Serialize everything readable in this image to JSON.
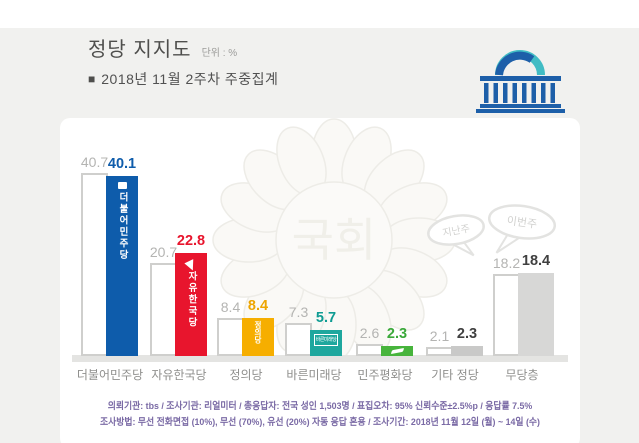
{
  "header": {
    "title": "정당 지지도",
    "unit_label": "단위 : %",
    "subtitle_bullet": "■",
    "subtitle": "2018년 11월 2주차 주중집계"
  },
  "chart_data": {
    "type": "bar",
    "title": "정당 지지도",
    "unit": "%",
    "categories": [
      "더불어민주당",
      "자유한국당",
      "정의당",
      "바른미래당",
      "민주평화당",
      "기타 정당",
      "무당층"
    ],
    "series": [
      {
        "name": "지난주",
        "values": [
          40.7,
          20.7,
          8.4,
          7.3,
          2.6,
          2.1,
          18.2
        ]
      },
      {
        "name": "이번주",
        "values": [
          40.1,
          22.8,
          8.4,
          5.7,
          2.3,
          2.3,
          18.4
        ]
      }
    ],
    "bar_logos": [
      "더불어민주당",
      "자유한국당",
      "정의당",
      "바른미래당",
      "",
      "",
      ""
    ],
    "this_week_bar_colors": [
      "#0e5cab",
      "#e8152d",
      "#f6ae00",
      "#1ea79e",
      "#47b43c",
      "#c9c9c8",
      "#d7d7d6"
    ],
    "this_week_label_colors": [
      "#0e5cab",
      "#e8152d",
      "#eda500",
      "#0e9c93",
      "#3aa93a",
      "#404040",
      "#404040"
    ],
    "last_week_label_color": "#b4b4b2",
    "legend_position": "speech-bubbles-top-right",
    "grid": false,
    "ylim": [
      0,
      45
    ]
  },
  "legend_bubbles": {
    "last_week": "지난주",
    "this_week": "이번주"
  },
  "watermark": {
    "text": "국회"
  },
  "footnote": {
    "line1": "의뢰기관: tbs / 조사기관: 리얼미터 / 총응답자: 전국 성인 1,503명 / 표집오차: 95% 신뢰수준±2.5%p / 응답률 7.5%",
    "line2": "조사방법: 무선 전화면접 (10%), 무선 (70%), 유선 (20%) 자동 응답 혼용 / 조사기간: 2018년 11월 12일 (월) ~ 14일 (수)"
  }
}
